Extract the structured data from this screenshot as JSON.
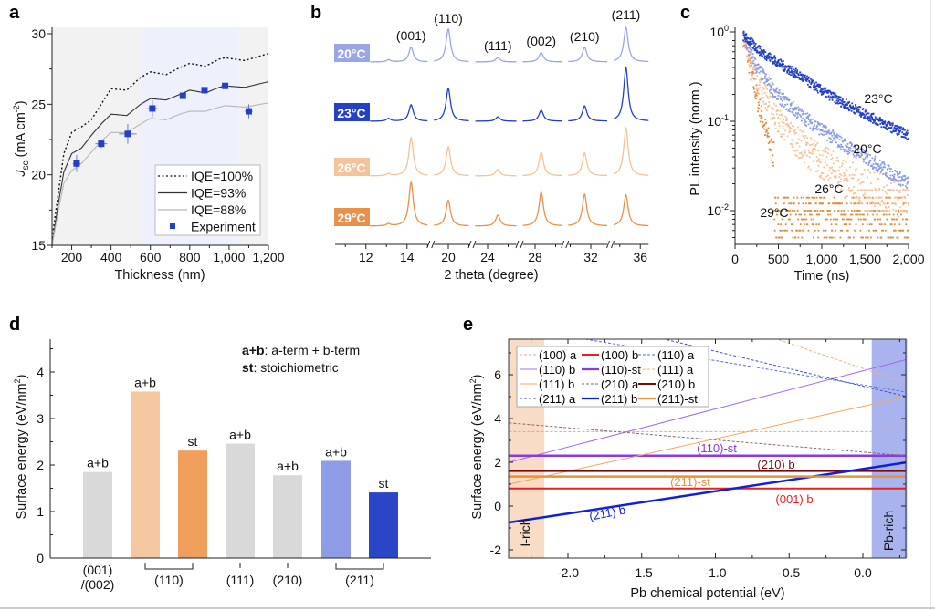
{
  "chart_data": [
    {
      "panel": "a",
      "type": "line",
      "xlabel": "Thickness (nm)",
      "ylabel": {
        "main": "J",
        "sub": "sc",
        "rest": " (mA cm",
        "sup": "-2",
        "close": ")"
      },
      "xlim": [
        100,
        1200
      ],
      "ylim": [
        15,
        30
      ],
      "xticks": [
        200,
        400,
        600,
        800,
        1000,
        1200
      ],
      "xtick_labels": [
        "200",
        "400",
        "600",
        "800",
        "1,000",
        "1,200"
      ],
      "yticks": [
        15,
        20,
        25,
        30
      ],
      "ytick_labels": [
        "15",
        "20",
        "25",
        "30"
      ],
      "shaded_regions": [
        {
          "range": [
            100,
            550
          ],
          "color": "#f2f2f2"
        },
        {
          "range": [
            550,
            1050
          ],
          "color": "#eef0fb"
        },
        {
          "range": [
            1050,
            1200
          ],
          "color": "#f2f2f2"
        }
      ],
      "legend_position": "bottom-right",
      "series": [
        {
          "name": "IQE=100%",
          "style": "dotted",
          "color": "#111111",
          "x": [
            100,
            130,
            160,
            200,
            250,
            300,
            350,
            400,
            480,
            550,
            600,
            680,
            750,
            800,
            880,
            950,
            980,
            1080,
            1200
          ],
          "y": [
            15.5,
            18.5,
            21.5,
            23.0,
            23.4,
            23.9,
            25.0,
            26.1,
            26.0,
            26.9,
            27.3,
            27.1,
            27.6,
            27.9,
            27.7,
            28.2,
            28.3,
            28.1,
            28.6
          ]
        },
        {
          "name": "IQE=93%",
          "style": "solid",
          "color": "#333333",
          "x": [
            100,
            130,
            160,
            200,
            250,
            300,
            350,
            400,
            480,
            550,
            600,
            680,
            750,
            800,
            880,
            950,
            980,
            1080,
            1200
          ],
          "y": [
            15.0,
            17.8,
            20.2,
            21.5,
            21.9,
            22.8,
            23.6,
            24.3,
            24.2,
            25.0,
            25.4,
            25.3,
            25.7,
            26.0,
            25.8,
            26.2,
            26.3,
            26.2,
            26.6
          ]
        },
        {
          "name": "IQE=88%",
          "style": "solid",
          "color": "#b8b8b8",
          "x": [
            100,
            130,
            160,
            200,
            250,
            300,
            350,
            400,
            480,
            550,
            600,
            680,
            750,
            800,
            880,
            950,
            980,
            1080,
            1200
          ],
          "y": [
            15.0,
            17.3,
            19.4,
            20.3,
            20.8,
            21.6,
            22.4,
            23.0,
            23.0,
            23.6,
            24.0,
            23.9,
            24.3,
            24.5,
            24.5,
            24.8,
            24.9,
            24.8,
            25.1
          ]
        },
        {
          "name": "Experiment",
          "style": "marker",
          "color": "#2340c6",
          "x": [
            225,
            350,
            485,
            610,
            765,
            875,
            980,
            1100
          ],
          "y": [
            20.8,
            22.2,
            22.9,
            24.7,
            25.6,
            26.0,
            26.3,
            24.5
          ],
          "xerr": [
            20,
            30,
            45,
            25,
            15,
            15,
            20,
            20
          ],
          "yerr": [
            0.6,
            0.3,
            0.7,
            0.6,
            0.2,
            0.15,
            0.2,
            0.5
          ]
        }
      ]
    },
    {
      "panel": "b",
      "type": "line",
      "xlabel": "2 theta (degree)",
      "axis_breaks": [
        [
          10.5,
          15.0
        ],
        [
          19.3,
          21.0
        ],
        [
          23.4,
          25.4
        ],
        [
          27.4,
          29.3
        ],
        [
          30.9,
          32.8
        ],
        [
          34.7,
          36.4
        ]
      ],
      "xticks": [
        12,
        14,
        20,
        24,
        28,
        32,
        36
      ],
      "xtick_labels": [
        "12",
        "14",
        "20",
        "24",
        "28",
        "32",
        "36"
      ],
      "peaks": [
        {
          "label": "(001)",
          "position": 14.2
        },
        {
          "label": "(110)",
          "position": 20.0
        },
        {
          "label": "(111)",
          "position": 24.5
        },
        {
          "label": "(002)",
          "position": 28.3
        },
        {
          "label": "(210)",
          "position": 31.7
        },
        {
          "label": "(211)",
          "position": 35.3
        }
      ],
      "minor_peak_position": 13.1,
      "series": [
        {
          "name": "20°C",
          "color": "#9aa6e6",
          "intensities": [
            0.27,
            0.6,
            0.08,
            0.17,
            0.27,
            0.63
          ],
          "minor": 0.04
        },
        {
          "name": "23°C",
          "color": "#2340c6",
          "intensities": [
            0.3,
            0.6,
            0.08,
            0.2,
            0.28,
            0.98
          ],
          "minor": 0.05
        },
        {
          "name": "26°C",
          "color": "#f3c39c",
          "intensities": [
            0.7,
            0.53,
            0.12,
            0.43,
            0.42,
            0.88
          ],
          "minor": 0.04
        },
        {
          "name": "29°C",
          "color": "#e8914c",
          "intensities": [
            0.8,
            0.47,
            0.2,
            0.62,
            0.58,
            0.57
          ],
          "minor": 0.04
        }
      ]
    },
    {
      "panel": "c",
      "type": "scatter",
      "xlabel": "Time (ns)",
      "ylabel": "PL intensity (norm.)",
      "xlim": [
        0,
        2000
      ],
      "ylim": [
        0.0042,
        1.1
      ],
      "yscale": "log",
      "xticks": [
        0,
        500,
        1000,
        1500,
        2000
      ],
      "xtick_labels": [
        "0",
        "500",
        "1,000",
        "1,500",
        "2,000"
      ],
      "yticks": [
        1,
        0.1,
        0.01
      ],
      "ytick_labels": [
        {
          "base": "10",
          "exp": "0"
        },
        {
          "base": "10",
          "exp": "-1"
        },
        {
          "base": "10",
          "exp": "-2"
        }
      ],
      "series": [
        {
          "name": "23°C",
          "color": "#2340c6",
          "t": [
            100,
            300,
            500,
            750,
            1000,
            1250,
            1500,
            1750,
            2000
          ],
          "y": [
            0.9,
            0.6,
            0.45,
            0.32,
            0.22,
            0.16,
            0.12,
            0.09,
            0.07
          ]
        },
        {
          "name": "20°C",
          "color": "#8c9be5",
          "t": [
            100,
            250,
            500,
            750,
            1000,
            1250,
            1500,
            1750,
            2000
          ],
          "y": [
            0.9,
            0.4,
            0.19,
            0.12,
            0.08,
            0.055,
            0.04,
            0.028,
            0.02
          ]
        },
        {
          "name": "26°C",
          "color": "#f3c39c",
          "t": [
            100,
            250,
            500,
            750,
            1000,
            1250,
            1500,
            1750,
            2000
          ],
          "y": [
            0.9,
            0.3,
            0.1,
            0.055,
            0.035,
            0.024,
            0.018,
            0.015,
            0.012
          ]
        },
        {
          "name": "29°C",
          "color": "#e08a40",
          "t": [
            100,
            200,
            300,
            400,
            500,
            700,
            1000,
            1500,
            2000
          ],
          "y": [
            0.9,
            0.3,
            0.12,
            0.055,
            0.03,
            0.013,
            0.009,
            0.008,
            0.008
          ]
        }
      ]
    },
    {
      "panel": "d",
      "type": "bar",
      "ylabel": "Surface energy (eV/nm",
      "ylabel_sup": "2",
      "ylabel_close": ")",
      "ylim": [
        0,
        4.6
      ],
      "yticks": [
        0,
        1,
        2,
        3,
        4
      ],
      "ytick_labels": [
        "0",
        "1",
        "2",
        "3",
        "4"
      ],
      "bars": [
        {
          "label": "a+b",
          "value": 1.85,
          "color": "#d9d9d9"
        },
        {
          "label": "a+b",
          "value": 3.58,
          "color": "#f6c8a0"
        },
        {
          "label": "st",
          "value": 2.31,
          "color": "#ef9f5b"
        },
        {
          "label": "a+b",
          "value": 2.46,
          "color": "#d9d9d9"
        },
        {
          "label": "a+b",
          "value": 1.78,
          "color": "#d9d9d9"
        },
        {
          "label": "a+b",
          "value": 2.09,
          "color": "#8e9ce6"
        },
        {
          "label": "st",
          "value": 1.41,
          "color": "#2a45c5"
        }
      ],
      "groups": [
        {
          "label": [
            "(001)",
            "/(002)"
          ],
          "bars": [
            0
          ]
        },
        {
          "label": [
            "(110)"
          ],
          "bars": [
            1,
            2
          ]
        },
        {
          "label": [
            "(111)"
          ],
          "bars": [
            3
          ]
        },
        {
          "label": [
            "(210)"
          ],
          "bars": [
            4
          ]
        },
        {
          "label": [
            "(211)"
          ],
          "bars": [
            5,
            6
          ]
        }
      ],
      "annotations": [
        {
          "bold": "a+b",
          "text": ": a-term + b-term"
        },
        {
          "bold": "st",
          "text": ": stoichiometric"
        }
      ]
    },
    {
      "panel": "e",
      "type": "line",
      "xlabel": "Pb chemical potential (eV)",
      "ylabel": "Surface energy (eV/nm",
      "ylabel_sup": "2",
      "ylabel_close": ")",
      "xlim": [
        -2.4,
        0.3
      ],
      "ylim": [
        -2.4,
        7.6
      ],
      "xticks": [
        -2.0,
        -1.5,
        -1.0,
        -0.5,
        0.0
      ],
      "xtick_labels": [
        "-2.0",
        "-1.5",
        "-1.0",
        "-0.5",
        "0.0"
      ],
      "yticks": [
        -2,
        0,
        2,
        4,
        6
      ],
      "ytick_labels": [
        "-2",
        "0",
        "2",
        "4",
        "6"
      ],
      "regions": [
        {
          "label": "I-rich",
          "range": [
            -2.4,
            -2.16
          ],
          "color": "#f8dcc6"
        },
        {
          "label": "Pb-rich",
          "range": [
            0.06,
            0.3
          ],
          "color": "#a9b4ee"
        }
      ],
      "legend_position": "top-left",
      "series": [
        {
          "name": "(100) a",
          "color": "#e8a0a0",
          "style": "dashed",
          "width": 1,
          "x": [
            -2.4,
            0.3
          ],
          "y": [
            3.4,
            3.4
          ]
        },
        {
          "name": "(100) b",
          "color": "#e82020",
          "style": "solid",
          "width": 2,
          "x": [
            -2.4,
            0.3
          ],
          "y": [
            0.8,
            0.8
          ]
        },
        {
          "name": "(110) a",
          "color": "#5a6ad8",
          "style": "dashed",
          "width": 1,
          "x": [
            -2.4,
            0.3
          ],
          "y": [
            8.2,
            5.2
          ]
        },
        {
          "name": "(110) b",
          "color": "#a070e8",
          "style": "solid",
          "width": 1,
          "x": [
            -2.4,
            0.3
          ],
          "y": [
            2.0,
            6.7
          ]
        },
        {
          "name": "(110)-st",
          "color": "#8a3ae0",
          "style": "solid",
          "width": 2.5,
          "x": [
            -2.4,
            0.3
          ],
          "y": [
            2.3,
            2.3
          ]
        },
        {
          "name": "(111) a",
          "color": "#f0b080",
          "style": "dashed",
          "width": 1,
          "x": [
            -0.57,
            0.3
          ],
          "y": [
            7.6,
            5.6
          ]
        },
        {
          "name": "(111) b",
          "color": "#f0a860",
          "style": "solid",
          "width": 1,
          "x": [
            -2.4,
            0.3
          ],
          "y": [
            1.0,
            5.0
          ]
        },
        {
          "name": "(210) a",
          "color": "#8a6a6a",
          "style": "dashed",
          "width": 1,
          "x": [
            -2.4,
            0.3
          ],
          "y": [
            3.8,
            2.3
          ]
        },
        {
          "name": "(210) b",
          "color": "#7a0a0a",
          "style": "solid",
          "width": 2,
          "x": [
            -2.4,
            0.3
          ],
          "y": [
            1.6,
            1.6
          ]
        },
        {
          "name": "(211) a",
          "color": "#4050c8",
          "style": "dashed",
          "width": 1,
          "x": [
            -1.33,
            0.3
          ],
          "y": [
            7.6,
            5.0
          ]
        },
        {
          "name": "(211) b",
          "color": "#1020d8",
          "style": "solid",
          "width": 2.5,
          "x": [
            -2.4,
            0.3
          ],
          "y": [
            -0.75,
            2.0
          ]
        },
        {
          "name": "(211)-st",
          "color": "#e8903a",
          "style": "solid",
          "width": 2.5,
          "x": [
            -2.4,
            0.3
          ],
          "y": [
            1.35,
            1.35
          ]
        }
      ],
      "inline_labels": [
        {
          "text": "(110)-st",
          "color": "#8a3ae0"
        },
        {
          "text": "(210) b",
          "color": "#7a0a0a"
        },
        {
          "text": "(211)-st",
          "color": "#e8903a"
        },
        {
          "text": "(001) b",
          "color": "#e82020"
        },
        {
          "text": "(211) b",
          "color": "#1020d8"
        }
      ]
    }
  ],
  "panel_labels": [
    "a",
    "b",
    "c",
    "d",
    "e"
  ]
}
